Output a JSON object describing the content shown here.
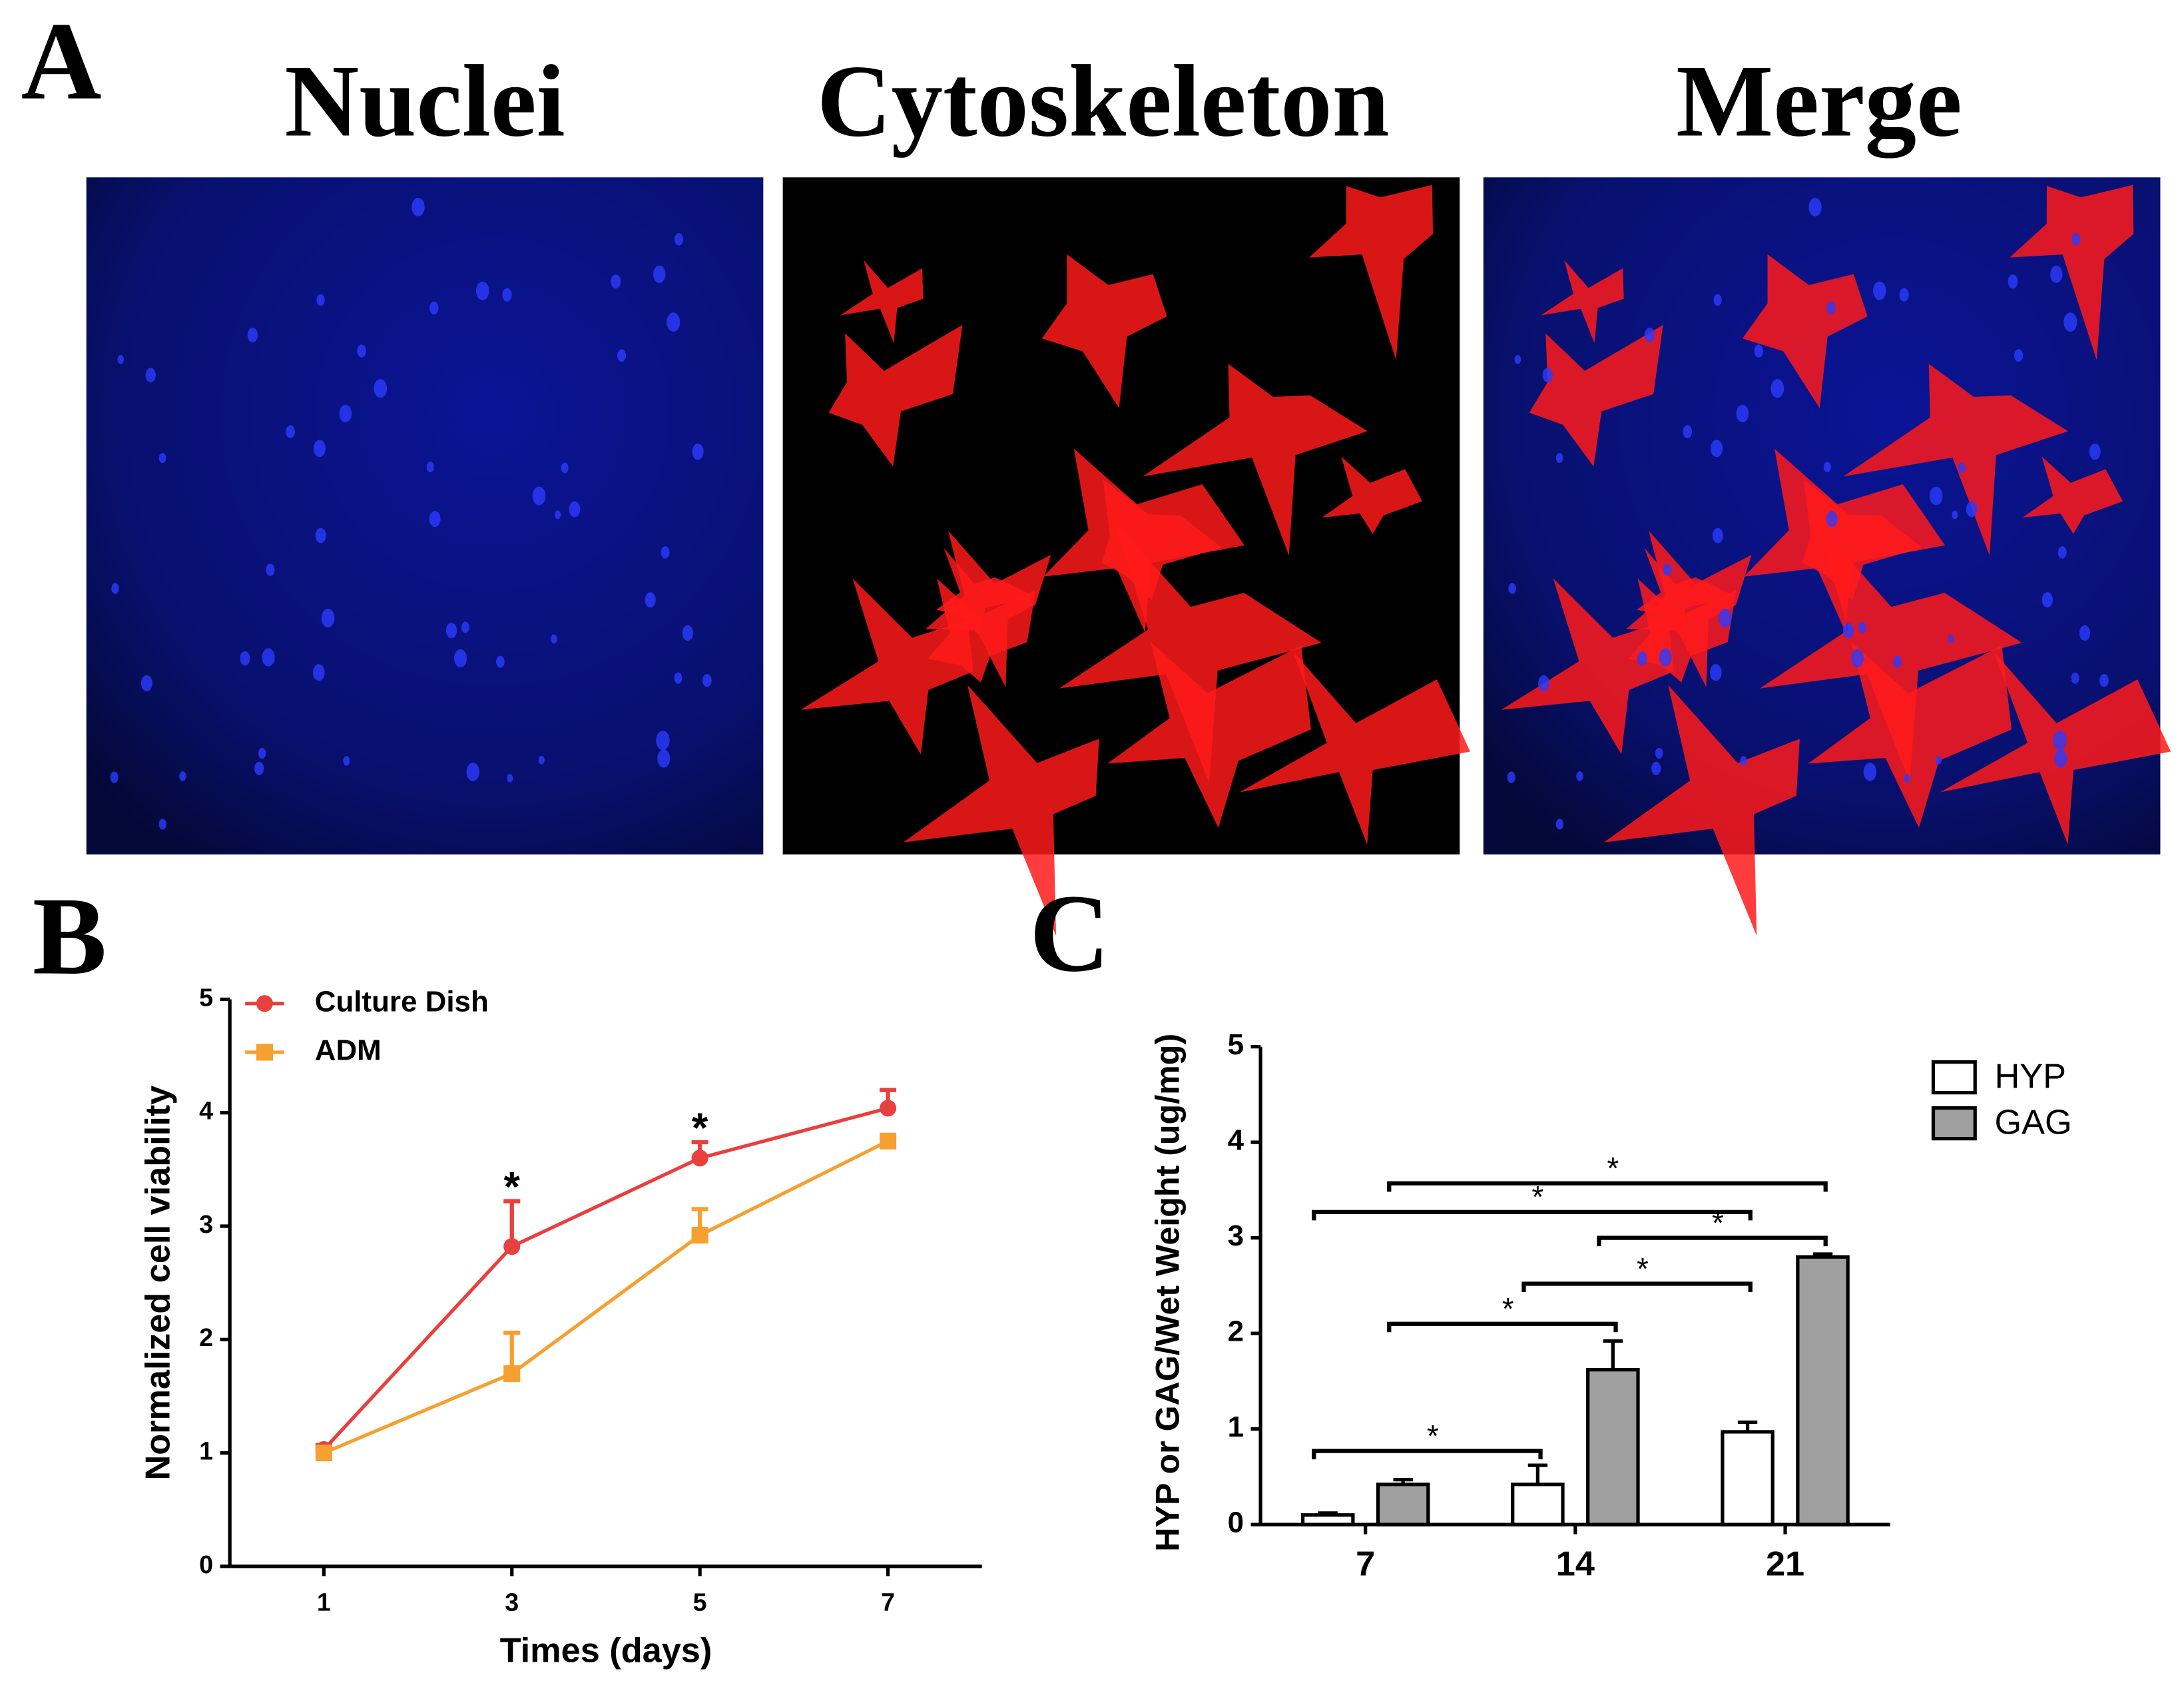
{
  "panel_labels": [
    "A",
    "B",
    "C"
  ],
  "image_titles": [
    "Nuclei",
    "Cytoskeleton",
    "Merge"
  ],
  "chart_data": [
    {
      "type": "line",
      "xlabel": "Times (days)",
      "ylabel": "Normalized cell viability",
      "x": [
        1,
        3,
        5,
        7
      ],
      "xlim": [
        0,
        8
      ],
      "xticks": [
        1,
        3,
        5,
        7
      ],
      "ylim": [
        0,
        5
      ],
      "yticks": [
        0,
        1,
        2,
        3,
        4,
        5
      ],
      "legend": "upper left",
      "series": [
        {
          "name": "Culture Dish",
          "color": "#e8403e",
          "marker": "circle",
          "values": [
            1.03,
            2.82,
            3.6,
            4.04
          ],
          "errors": [
            0.04,
            0.4,
            0.14,
            0.16
          ]
        },
        {
          "name": "ADM",
          "color": "#f5a030",
          "marker": "square",
          "values": [
            1.0,
            1.7,
            2.92,
            3.75
          ],
          "errors": [
            0.03,
            0.36,
            0.23,
            0.03
          ]
        }
      ],
      "annotations": [
        {
          "label": "*",
          "x": 3
        },
        {
          "label": "*",
          "x": 5
        }
      ]
    },
    {
      "type": "bar",
      "ylabel": "HYP or GAG/Wet Weight (ug/mg)",
      "categories": [
        "7",
        "14",
        "21"
      ],
      "ylim": [
        0,
        5
      ],
      "yticks": [
        0,
        1,
        2,
        3,
        4,
        5
      ],
      "legend": "upper right",
      "series": [
        {
          "name": "HYP",
          "color": "#ffffff",
          "values": [
            0.1,
            0.42,
            0.97
          ],
          "errors": [
            0.02,
            0.2,
            0.1
          ]
        },
        {
          "name": "GAG",
          "color": "#a0a0a0",
          "values": [
            0.42,
            1.62,
            2.8
          ],
          "errors": [
            0.05,
            0.3,
            0.03
          ]
        }
      ],
      "comparisons": [
        {
          "label": "*",
          "from": [
            0,
            0
          ],
          "to": [
            0,
            1
          ],
          "y": 0.77
        },
        {
          "label": "*",
          "from": [
            1,
            0
          ],
          "to": [
            1,
            1
          ],
          "y": 2.1
        },
        {
          "label": "*",
          "from": [
            0,
            1
          ],
          "to": [
            0,
            2
          ],
          "y": 2.52
        },
        {
          "label": "*",
          "from": [
            1,
            1
          ],
          "to": [
            1,
            2
          ],
          "y": 3.0
        },
        {
          "label": "*",
          "from": [
            0,
            0
          ],
          "to": [
            0,
            2
          ],
          "y": 3.27
        },
        {
          "label": "*",
          "from": [
            1,
            0
          ],
          "to": [
            1,
            2
          ],
          "y": 3.57
        }
      ]
    }
  ]
}
